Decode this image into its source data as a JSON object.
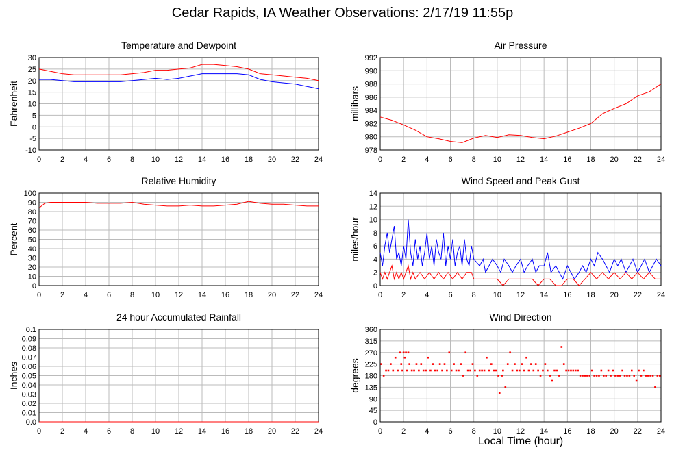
{
  "title": "Cedar Rapids, IA Weather Observations: 2/17/19 11:55p",
  "xlabel": "Local Time (hour)",
  "colors": {
    "primary": "#ff0000",
    "secondary": "#0000ff",
    "grid": "#bbbbbb"
  },
  "chart_data": [
    {
      "id": "temp",
      "type": "line",
      "title": "Temperature and Dewpoint",
      "ylabel": "Fahrenheit",
      "xlim": [
        0,
        24
      ],
      "ylim": [
        -10,
        30
      ],
      "xticks": [
        0,
        2,
        4,
        6,
        8,
        10,
        12,
        14,
        16,
        18,
        20,
        22,
        24
      ],
      "yticks": [
        -10,
        -5,
        0,
        5,
        10,
        15,
        20,
        25,
        30
      ],
      "grid": true,
      "series": [
        {
          "color": "#ff0000",
          "x": [
            0,
            1,
            2,
            3,
            4,
            5,
            6,
            7,
            8,
            9,
            10,
            11,
            12,
            13,
            14,
            15,
            16,
            17,
            18,
            19,
            20,
            21,
            22,
            23,
            24
          ],
          "y": [
            25,
            24,
            23,
            22.5,
            22.5,
            22.5,
            22.5,
            22.5,
            23,
            23.5,
            24.5,
            24.5,
            25,
            25.5,
            27,
            27,
            26.5,
            26,
            25,
            23,
            22.5,
            22,
            21.5,
            21,
            20
          ]
        },
        {
          "color": "#0000ff",
          "x": [
            0,
            1,
            2,
            3,
            4,
            5,
            6,
            7,
            8,
            9,
            10,
            11,
            12,
            13,
            14,
            15,
            16,
            17,
            18,
            19,
            20,
            21,
            22,
            23,
            24
          ],
          "y": [
            20.5,
            20.5,
            20,
            19.5,
            19.5,
            19.5,
            19.5,
            19.5,
            20,
            20.5,
            21,
            20.5,
            21,
            22,
            23,
            23,
            23,
            23,
            22.5,
            20.5,
            19.5,
            19,
            18.5,
            17.5,
            16.5
          ]
        }
      ]
    },
    {
      "id": "pressure",
      "type": "line",
      "title": "Air Pressure",
      "ylabel": "millibars",
      "xlim": [
        0,
        24
      ],
      "ylim": [
        978,
        992
      ],
      "xticks": [
        0,
        2,
        4,
        6,
        8,
        10,
        12,
        14,
        16,
        18,
        20,
        22,
        24
      ],
      "yticks": [
        978,
        980,
        982,
        984,
        986,
        988,
        990,
        992
      ],
      "grid": true,
      "series": [
        {
          "color": "#ff0000",
          "x": [
            0,
            1,
            2,
            3,
            4,
            5,
            6,
            7,
            8,
            9,
            10,
            11,
            12,
            13,
            14,
            15,
            16,
            17,
            18,
            19,
            20,
            21,
            22,
            23,
            24
          ],
          "y": [
            983,
            982.5,
            981.8,
            981,
            980,
            979.7,
            979.3,
            979.1,
            979.8,
            980.2,
            979.9,
            980.3,
            980.2,
            979.9,
            979.7,
            980.1,
            980.7,
            981.3,
            982,
            983.5,
            984.3,
            985,
            986.2,
            986.8,
            988
          ]
        }
      ]
    },
    {
      "id": "humidity",
      "type": "line",
      "title": "Relative Humidity",
      "ylabel": "Percent",
      "xlim": [
        0,
        24
      ],
      "ylim": [
        0,
        100
      ],
      "xticks": [
        0,
        2,
        4,
        6,
        8,
        10,
        12,
        14,
        16,
        18,
        20,
        22,
        24
      ],
      "yticks": [
        0,
        10,
        20,
        30,
        40,
        50,
        60,
        70,
        80,
        90,
        100
      ],
      "grid": true,
      "series": [
        {
          "color": "#ff0000",
          "x": [
            0,
            0.5,
            1,
            2,
            3,
            4,
            5,
            6,
            7,
            8,
            9,
            10,
            11,
            12,
            13,
            14,
            15,
            16,
            17,
            18,
            19,
            20,
            21,
            22,
            23,
            24
          ],
          "y": [
            84,
            89,
            90,
            90,
            90,
            90,
            89,
            89,
            89,
            90,
            88,
            87,
            86,
            86,
            87,
            86,
            86,
            87,
            88,
            91,
            89,
            88,
            88,
            87,
            86,
            86
          ]
        }
      ]
    },
    {
      "id": "wind",
      "type": "line",
      "title": "Wind Speed and Peak Gust",
      "ylabel": "miles/hour",
      "xlim": [
        0,
        24
      ],
      "ylim": [
        0,
        14
      ],
      "xticks": [
        0,
        2,
        4,
        6,
        8,
        10,
        12,
        14,
        16,
        18,
        20,
        22,
        24
      ],
      "yticks": [
        0,
        2,
        4,
        6,
        8,
        10,
        12,
        14
      ],
      "grid": true,
      "series": [
        {
          "color": "#0000ff",
          "x": [
            0,
            0.2,
            0.4,
            0.6,
            0.8,
            1,
            1.2,
            1.4,
            1.6,
            1.8,
            2,
            2.2,
            2.4,
            2.6,
            2.8,
            3,
            3.2,
            3.4,
            3.6,
            3.8,
            4,
            4.2,
            4.4,
            4.6,
            4.8,
            5,
            5.2,
            5.4,
            5.6,
            5.8,
            6,
            6.2,
            6.4,
            6.6,
            6.8,
            7,
            7.2,
            7.4,
            7.6,
            7.8,
            8,
            8.5,
            8.8,
            9,
            9.3,
            9.6,
            10,
            10.3,
            10.6,
            11,
            11.3,
            11.6,
            12,
            12.3,
            12.6,
            13,
            13.3,
            13.6,
            14,
            14.3,
            14.6,
            15,
            15.3,
            15.6,
            16,
            16.3,
            16.6,
            17,
            17.3,
            17.6,
            18,
            18.3,
            18.6,
            19,
            19.3,
            19.6,
            20,
            20.3,
            20.6,
            21,
            21.3,
            21.6,
            22,
            22.3,
            22.6,
            23,
            23.3,
            23.6,
            24
          ],
          "y": [
            5,
            3,
            6,
            8,
            5,
            7,
            9,
            4,
            5,
            3,
            6,
            4,
            10,
            5,
            3,
            7,
            4,
            6,
            3,
            5,
            8,
            4,
            6,
            3,
            7,
            5,
            4,
            8,
            3,
            6,
            4,
            7,
            3,
            5,
            6,
            3,
            7,
            4,
            3,
            6,
            4,
            3,
            4,
            2,
            3,
            4,
            3,
            2,
            4,
            3,
            2,
            3,
            4,
            2,
            3,
            4,
            2,
            3,
            3,
            5,
            2,
            3,
            2,
            1,
            3,
            2,
            1,
            2,
            3,
            2,
            4,
            3,
            5,
            4,
            3,
            2,
            4,
            3,
            4,
            2,
            3,
            4,
            2,
            3,
            4,
            2,
            3,
            4,
            3
          ]
        },
        {
          "color": "#ff0000",
          "x": [
            0,
            0.2,
            0.4,
            0.6,
            0.8,
            1,
            1.2,
            1.4,
            1.6,
            1.8,
            2,
            2.2,
            2.4,
            2.6,
            2.8,
            3,
            3.4,
            3.8,
            4.2,
            4.6,
            5,
            5.4,
            5.8,
            6.2,
            6.6,
            7,
            7.4,
            7.8,
            8,
            8.5,
            9,
            10,
            10.5,
            11,
            12,
            13,
            13.5,
            14,
            14.5,
            15,
            15.5,
            16,
            16.5,
            17,
            17.5,
            18,
            18.5,
            19,
            19.5,
            20,
            20.5,
            21,
            21.5,
            22,
            22.5,
            23,
            23.5,
            24
          ],
          "y": [
            2,
            1,
            2,
            1,
            2,
            3,
            1,
            2,
            1,
            2,
            1,
            2,
            3,
            1,
            2,
            1,
            2,
            1,
            2,
            1,
            2,
            1,
            2,
            1,
            2,
            1,
            2,
            2,
            1,
            1,
            1,
            1,
            0,
            1,
            1,
            1,
            0,
            1,
            1,
            0,
            0,
            1,
            1,
            0,
            1,
            2,
            1,
            2,
            1,
            2,
            1,
            2,
            1,
            2,
            1,
            2,
            1,
            1
          ]
        }
      ]
    },
    {
      "id": "rain",
      "type": "line",
      "title": "24 hour Accumulated Rainfall",
      "ylabel": "Inches",
      "xlim": [
        0,
        24
      ],
      "ylim": [
        0,
        0.1
      ],
      "xticks": [
        0,
        2,
        4,
        6,
        8,
        10,
        12,
        14,
        16,
        18,
        20,
        22,
        24
      ],
      "yticks": [
        0.0,
        0.01,
        0.02,
        0.03,
        0.04,
        0.05,
        0.06,
        0.07,
        0.08,
        0.09,
        0.1
      ],
      "ytick_labels": [
        "0.0",
        "0.01",
        "0.02",
        "0.03",
        "0.04",
        "0.05",
        "0.06",
        "0.07",
        "0.08",
        "0.09",
        "0.1"
      ],
      "grid": true,
      "series": [
        {
          "color": "#ff0000",
          "x": [
            0,
            24
          ],
          "y": [
            0,
            0
          ]
        }
      ]
    },
    {
      "id": "direction",
      "type": "scatter",
      "title": "Wind Direction",
      "ylabel": "degrees",
      "xlim": [
        0,
        24
      ],
      "ylim": [
        0,
        360
      ],
      "xticks": [
        0,
        2,
        4,
        6,
        8,
        10,
        12,
        14,
        16,
        18,
        20,
        22,
        24
      ],
      "yticks": [
        0,
        45,
        90,
        135,
        180,
        225,
        270,
        315,
        360
      ],
      "grid": true,
      "series": [
        {
          "color": "#ff0000",
          "x": [
            0.1,
            0.3,
            0.5,
            0.7,
            0.9,
            1.1,
            1.3,
            1.5,
            1.7,
            1.8,
            1.9,
            2.0,
            2.1,
            2.2,
            2.3,
            2.4,
            2.5,
            2.7,
            2.9,
            3.1,
            3.3,
            3.5,
            3.7,
            3.9,
            4.1,
            4.3,
            4.5,
            4.7,
            4.9,
            5.1,
            5.3,
            5.5,
            5.7,
            5.9,
            6.1,
            6.3,
            6.5,
            6.7,
            6.9,
            7.1,
            7.3,
            7.5,
            7.7,
            7.9,
            8.1,
            8.3,
            8.5,
            8.7,
            8.9,
            9.1,
            9.3,
            9.5,
            9.7,
            9.9,
            10.1,
            10.2,
            10.4,
            10.5,
            10.7,
            10.9,
            11.1,
            11.3,
            11.5,
            11.7,
            11.9,
            12.1,
            12.3,
            12.5,
            12.7,
            12.9,
            13.1,
            13.3,
            13.5,
            13.7,
            13.9,
            14.1,
            14.3,
            14.5,
            14.7,
            14.9,
            15.1,
            15.3,
            15.5,
            15.7,
            15.9,
            16.1,
            16.3,
            16.5,
            16.7,
            16.9,
            17.1,
            17.3,
            17.5,
            17.7,
            17.9,
            18.1,
            18.3,
            18.5,
            18.7,
            18.9,
            19.1,
            19.3,
            19.5,
            19.7,
            19.9,
            20.1,
            20.3,
            20.5,
            20.7,
            20.9,
            21.1,
            21.3,
            21.5,
            21.7,
            21.9,
            22.1,
            22.3,
            22.5,
            22.7,
            22.9,
            23.1,
            23.3,
            23.5,
            23.7,
            23.9
          ],
          "y": [
            225,
            180,
            200,
            200,
            225,
            200,
            250,
            200,
            270,
            225,
            200,
            270,
            250,
            270,
            200,
            270,
            225,
            200,
            200,
            225,
            200,
            225,
            200,
            200,
            250,
            200,
            225,
            200,
            200,
            225,
            200,
            225,
            200,
            270,
            200,
            225,
            200,
            200,
            225,
            180,
            270,
            200,
            200,
            225,
            200,
            180,
            200,
            200,
            200,
            250,
            200,
            225,
            200,
            200,
            180,
            112,
            180,
            200,
            135,
            225,
            270,
            200,
            225,
            200,
            200,
            225,
            200,
            250,
            200,
            225,
            200,
            225,
            200,
            180,
            200,
            225,
            200,
            180,
            160,
            200,
            200,
            180,
            292,
            225,
            200,
            200,
            200,
            200,
            200,
            200,
            180,
            180,
            180,
            180,
            180,
            200,
            180,
            180,
            180,
            200,
            180,
            180,
            200,
            180,
            200,
            180,
            180,
            180,
            200,
            180,
            180,
            180,
            200,
            180,
            160,
            200,
            180,
            200,
            180,
            180,
            180,
            180,
            135,
            180,
            180
          ]
        }
      ]
    }
  ]
}
